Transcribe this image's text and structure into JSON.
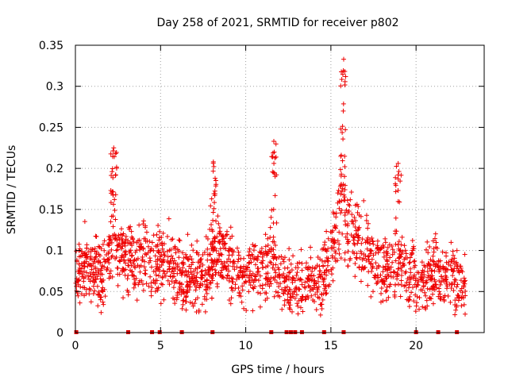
{
  "chart_data": {
    "type": "scatter",
    "title": "Day 258 of 2021, SRMTID for receiver p802",
    "xlabel": "GPS time / hours",
    "ylabel": "SRMTID / TECUs",
    "xlim": [
      0,
      24
    ],
    "ylim": [
      0,
      0.35
    ],
    "x_ticks": [
      0,
      5,
      10,
      15,
      20
    ],
    "y_ticks": [
      0,
      0.05,
      0.1,
      0.15,
      0.2,
      0.25,
      0.3,
      0.35
    ],
    "x_tick_labels": [
      "0",
      "5",
      "10",
      "15",
      "20"
    ],
    "y_tick_labels": [
      "0",
      "0.05",
      "0.1",
      "0.15",
      "0.2",
      "0.25",
      "0.3",
      "0.35"
    ],
    "grid": true,
    "marker": "+",
    "color": "#ee0000",
    "zero_markers_x": [
      0.05,
      3.1,
      4.5,
      4.95,
      6.25,
      8.05,
      11.5,
      12.4,
      12.65,
      12.9,
      13.3,
      14.6,
      15.75,
      20.0,
      21.3,
      22.4
    ],
    "series_envelope": {
      "x": [
        0,
        0.5,
        1,
        1.5,
        2,
        2.3,
        2.6,
        3,
        3.5,
        4,
        4.5,
        5,
        5.5,
        6,
        6.5,
        7,
        7.5,
        8,
        8.3,
        8.7,
        9,
        9.5,
        10,
        10.5,
        11,
        11.5,
        11.8,
        12,
        12.5,
        13,
        13.5,
        14,
        14.5,
        15,
        15.3,
        15.6,
        15.8,
        16,
        16.3,
        16.7,
        17,
        17.5,
        18,
        18.5,
        19,
        19.3,
        19.6,
        20,
        20.5,
        21,
        21.5,
        22,
        22.5,
        22.9
      ],
      "y": [
        0.065,
        0.085,
        0.08,
        0.065,
        0.095,
        0.125,
        0.1,
        0.09,
        0.085,
        0.095,
        0.08,
        0.085,
        0.09,
        0.07,
        0.065,
        0.07,
        0.068,
        0.075,
        0.1,
        0.095,
        0.085,
        0.075,
        0.07,
        0.075,
        0.078,
        0.085,
        0.07,
        0.06,
        0.055,
        0.06,
        0.058,
        0.065,
        0.07,
        0.085,
        0.12,
        0.17,
        0.14,
        0.12,
        0.125,
        0.11,
        0.1,
        0.09,
        0.08,
        0.075,
        0.08,
        0.085,
        0.07,
        0.06,
        0.06,
        0.07,
        0.07,
        0.065,
        0.06,
        0.06
      ]
    },
    "observed_peaks": [
      {
        "x": 2.25,
        "y": 0.225
      },
      {
        "x": 8.1,
        "y": 0.208
      },
      {
        "x": 11.65,
        "y": 0.233
      },
      {
        "x": 15.75,
        "y": 0.333
      },
      {
        "x": 18.95,
        "y": 0.206
      }
    ]
  }
}
